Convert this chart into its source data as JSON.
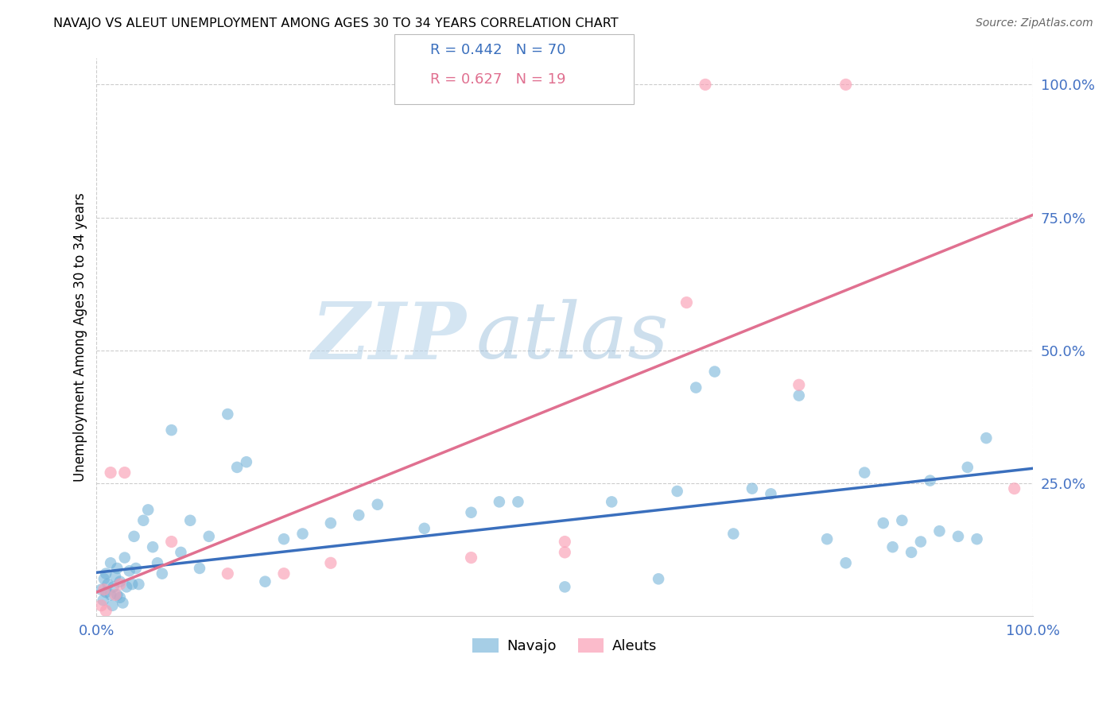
{
  "title": "NAVAJO VS ALEUT UNEMPLOYMENT AMONG AGES 30 TO 34 YEARS CORRELATION CHART",
  "source": "Source: ZipAtlas.com",
  "ylabel_label": "Unemployment Among Ages 30 to 34 years",
  "navajo_R": 0.442,
  "navajo_N": 70,
  "aleut_R": 0.627,
  "aleut_N": 19,
  "navajo_color": "#6baed6",
  "aleut_color": "#fa9fb5",
  "navajo_line_color": "#3a6fbd",
  "aleut_line_color": "#e07090",
  "background_color": "#ffffff",
  "xlim": [
    0,
    1
  ],
  "ylim": [
    0,
    1.05
  ],
  "navajo_x": [
    0.005,
    0.007,
    0.008,
    0.01,
    0.01,
    0.012,
    0.015,
    0.015,
    0.017,
    0.018,
    0.02,
    0.022,
    0.022,
    0.025,
    0.025,
    0.028,
    0.03,
    0.032,
    0.035,
    0.038,
    0.04,
    0.042,
    0.045,
    0.05,
    0.055,
    0.06,
    0.065,
    0.07,
    0.08,
    0.09,
    0.1,
    0.11,
    0.12,
    0.14,
    0.15,
    0.16,
    0.18,
    0.2,
    0.22,
    0.25,
    0.28,
    0.3,
    0.35,
    0.4,
    0.43,
    0.45,
    0.5,
    0.55,
    0.6,
    0.62,
    0.64,
    0.66,
    0.68,
    0.7,
    0.72,
    0.75,
    0.78,
    0.8,
    0.82,
    0.84,
    0.85,
    0.86,
    0.87,
    0.88,
    0.89,
    0.9,
    0.92,
    0.93,
    0.94,
    0.95
  ],
  "navajo_y": [
    0.05,
    0.03,
    0.07,
    0.045,
    0.08,
    0.06,
    0.04,
    0.1,
    0.02,
    0.055,
    0.075,
    0.04,
    0.09,
    0.035,
    0.065,
    0.025,
    0.11,
    0.055,
    0.085,
    0.06,
    0.15,
    0.09,
    0.06,
    0.18,
    0.2,
    0.13,
    0.1,
    0.08,
    0.35,
    0.12,
    0.18,
    0.09,
    0.15,
    0.38,
    0.28,
    0.29,
    0.065,
    0.145,
    0.155,
    0.175,
    0.19,
    0.21,
    0.165,
    0.195,
    0.215,
    0.215,
    0.055,
    0.215,
    0.07,
    0.235,
    0.43,
    0.46,
    0.155,
    0.24,
    0.23,
    0.415,
    0.145,
    0.1,
    0.27,
    0.175,
    0.13,
    0.18,
    0.12,
    0.14,
    0.255,
    0.16,
    0.15,
    0.28,
    0.145,
    0.335
  ],
  "aleut_x": [
    0.005,
    0.008,
    0.01,
    0.015,
    0.02,
    0.025,
    0.03,
    0.08,
    0.14,
    0.2,
    0.25,
    0.4,
    0.5,
    0.5,
    0.63,
    0.65,
    0.75,
    0.8,
    0.98
  ],
  "aleut_y": [
    0.02,
    0.05,
    0.01,
    0.27,
    0.04,
    0.06,
    0.27,
    0.14,
    0.08,
    0.08,
    0.1,
    0.11,
    0.12,
    0.14,
    0.59,
    1.0,
    0.435,
    1.0,
    0.24
  ],
  "navajo_line_start_x": 0.0,
  "navajo_line_start_y": 0.082,
  "navajo_line_end_x": 1.0,
  "navajo_line_end_y": 0.278,
  "aleut_line_start_x": 0.0,
  "aleut_line_start_y": 0.045,
  "aleut_line_end_x": 1.0,
  "aleut_line_end_y": 0.755
}
